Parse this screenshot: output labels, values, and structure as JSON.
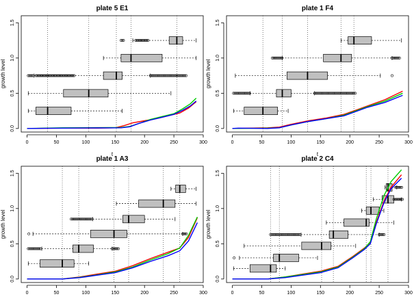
{
  "chart_data": [
    {
      "type": "line",
      "title": "plate 5 E1",
      "xlabel": "t",
      "ylabel": "growth level",
      "xlim": [
        -10,
        300
      ],
      "ylim": [
        -0.05,
        1.6
      ],
      "xticks": [
        0,
        50,
        100,
        150,
        200,
        250,
        300
      ],
      "yticks": [
        0.0,
        0.5,
        1.0,
        1.5
      ],
      "ytick_labels": [
        "0.0",
        "0.5",
        "1.0",
        "1.5"
      ],
      "vlines": [
        35,
        105,
        152,
        177,
        255
      ],
      "series": [
        {
          "color": "#ff0000",
          "points": [
            [
              0,
              0.0
            ],
            [
              60,
              0.005
            ],
            [
              120,
              0.005
            ],
            [
              150,
              0.01
            ],
            [
              165,
              0.04
            ],
            [
              180,
              0.08
            ],
            [
              200,
              0.11
            ],
            [
              220,
              0.14
            ],
            [
              240,
              0.18
            ],
            [
              260,
              0.22
            ],
            [
              275,
              0.29
            ],
            [
              288,
              0.38
            ]
          ]
        },
        {
          "color": "#00cc00",
          "points": [
            [
              0,
              0.0
            ],
            [
              60,
              0.01
            ],
            [
              120,
              0.012
            ],
            [
              160,
              0.015
            ],
            [
              175,
              0.03
            ],
            [
              190,
              0.07
            ],
            [
              210,
              0.13
            ],
            [
              230,
              0.17
            ],
            [
              250,
              0.21
            ],
            [
              265,
              0.28
            ],
            [
              278,
              0.35
            ],
            [
              288,
              0.43
            ]
          ]
        },
        {
          "color": "#0000ff",
          "points": [
            [
              0,
              0.0
            ],
            [
              60,
              0.005
            ],
            [
              120,
              0.008
            ],
            [
              160,
              0.01
            ],
            [
              175,
              0.025
            ],
            [
              190,
              0.07
            ],
            [
              210,
              0.12
            ],
            [
              230,
              0.16
            ],
            [
              250,
              0.2
            ],
            [
              265,
              0.26
            ],
            [
              278,
              0.32
            ],
            [
              288,
              0.39
            ]
          ]
        }
      ],
      "boxplots": [
        {
          "y": 0.25,
          "whisker_low": 2,
          "q1": 15,
          "median": 35,
          "q3": 75,
          "whisker_high": 162,
          "outliers": []
        },
        {
          "y": 0.5,
          "whisker_low": 2,
          "q1": 62,
          "median": 105,
          "q3": 138,
          "whisker_high": 245,
          "outliers": []
        },
        {
          "y": 0.75,
          "whisker_low": 12,
          "q1": 130,
          "median": 152,
          "q3": 162,
          "whisker_high": 210,
          "outliers": [
            [
              2,
              12
            ],
            [
              15,
              82
            ],
            [
              210,
              272
            ]
          ]
        },
        {
          "y": 1.0,
          "whisker_low": 130,
          "q1": 160,
          "median": 177,
          "q3": 230,
          "whisker_high": 288,
          "outliers": []
        },
        {
          "y": 1.25,
          "whisker_low": 180,
          "q1": 242,
          "median": 255,
          "q3": 265,
          "whisker_high": 288,
          "outliers": [
            [
              160,
              165
            ],
            [
              185,
              208
            ]
          ]
        }
      ]
    },
    {
      "type": "line",
      "title": "plate 1 F4",
      "xlabel": "t",
      "ylabel": "growth level",
      "xlim": [
        -10,
        300
      ],
      "ylim": [
        -0.05,
        1.6
      ],
      "xticks": [
        0,
        50,
        100,
        150,
        200,
        250,
        300
      ],
      "yticks": [
        0.0,
        0.5,
        1.0,
        1.5
      ],
      "ytick_labels": [
        "0.0",
        "0.5",
        "1.0",
        "1.5"
      ],
      "vlines": [
        52,
        85,
        128,
        185,
        207
      ],
      "series": [
        {
          "color": "#ff0000",
          "points": [
            [
              0,
              0.0
            ],
            [
              60,
              0.01
            ],
            [
              80,
              0.02
            ],
            [
              100,
              0.06
            ],
            [
              130,
              0.11
            ],
            [
              160,
              0.15
            ],
            [
              190,
              0.2
            ],
            [
              210,
              0.26
            ],
            [
              230,
              0.32
            ],
            [
              260,
              0.41
            ],
            [
              290,
              0.53
            ]
          ]
        },
        {
          "color": "#00cc00",
          "points": [
            [
              0,
              0.0
            ],
            [
              60,
              0.005
            ],
            [
              80,
              0.01
            ],
            [
              100,
              0.05
            ],
            [
              130,
              0.1
            ],
            [
              160,
              0.14
            ],
            [
              190,
              0.19
            ],
            [
              210,
              0.25
            ],
            [
              230,
              0.31
            ],
            [
              260,
              0.39
            ],
            [
              290,
              0.5
            ]
          ]
        },
        {
          "color": "#0000ff",
          "points": [
            [
              0,
              0.0
            ],
            [
              10,
              0.005
            ],
            [
              60,
              0.0
            ],
            [
              80,
              0.01
            ],
            [
              100,
              0.05
            ],
            [
              130,
              0.1
            ],
            [
              160,
              0.14
            ],
            [
              190,
              0.18
            ],
            [
              210,
              0.24
            ],
            [
              230,
              0.3
            ],
            [
              260,
              0.37
            ],
            [
              290,
              0.47
            ]
          ]
        }
      ],
      "boxplots": [
        {
          "y": 0.25,
          "whisker_low": 2,
          "q1": 20,
          "median": 52,
          "q3": 77,
          "whisker_high": 95,
          "outliers": []
        },
        {
          "y": 0.5,
          "whisker_low": 30,
          "q1": 75,
          "median": 85,
          "q3": 100,
          "whisker_high": 140,
          "outliers": [
            [
              2,
              30
            ],
            [
              140,
              210
            ]
          ]
        },
        {
          "y": 0.75,
          "whisker_low": 5,
          "q1": 93,
          "median": 128,
          "q3": 162,
          "whisker_high": 252,
          "outliers": [
            [
              272,
              272
            ]
          ]
        },
        {
          "y": 1.0,
          "whisker_low": 85,
          "q1": 155,
          "median": 185,
          "q3": 203,
          "whisker_high": 272,
          "outliers": [
            [
              68,
              85
            ],
            [
              272,
              285
            ]
          ]
        },
        {
          "y": 1.25,
          "whisker_low": 185,
          "q1": 197,
          "median": 207,
          "q3": 237,
          "whisker_high": 288,
          "outliers": []
        }
      ]
    },
    {
      "type": "line",
      "title": "plate 1 A3",
      "xlabel": "t",
      "ylabel": "growth level",
      "xlim": [
        -10,
        300
      ],
      "ylim": [
        -0.05,
        1.6
      ],
      "xticks": [
        0,
        50,
        100,
        150,
        200,
        250,
        300
      ],
      "yticks": [
        0.0,
        0.5,
        1.0,
        1.5
      ],
      "ytick_labels": [
        "0.0",
        "0.5",
        "1.0",
        "1.5"
      ],
      "vlines": [
        60,
        88,
        148,
        173,
        232,
        260
      ],
      "series": [
        {
          "color": "#ff0000",
          "points": [
            [
              0,
              0.0
            ],
            [
              60,
              0.0
            ],
            [
              90,
              0.03
            ],
            [
              120,
              0.07
            ],
            [
              150,
              0.11
            ],
            [
              180,
              0.19
            ],
            [
              210,
              0.29
            ],
            [
              240,
              0.38
            ],
            [
              260,
              0.44
            ],
            [
              275,
              0.59
            ],
            [
              290,
              0.87
            ]
          ]
        },
        {
          "color": "#00cc00",
          "points": [
            [
              0,
              0.0
            ],
            [
              60,
              0.0
            ],
            [
              90,
              0.025
            ],
            [
              120,
              0.06
            ],
            [
              150,
              0.1
            ],
            [
              180,
              0.17
            ],
            [
              210,
              0.27
            ],
            [
              240,
              0.36
            ],
            [
              260,
              0.44
            ],
            [
              275,
              0.62
            ],
            [
              290,
              0.88
            ]
          ]
        },
        {
          "color": "#0000ff",
          "points": [
            [
              0,
              0.0
            ],
            [
              60,
              0.0
            ],
            [
              90,
              0.02
            ],
            [
              120,
              0.055
            ],
            [
              150,
              0.09
            ],
            [
              180,
              0.16
            ],
            [
              210,
              0.25
            ],
            [
              240,
              0.33
            ],
            [
              260,
              0.4
            ],
            [
              275,
              0.54
            ],
            [
              290,
              0.8
            ]
          ]
        }
      ],
      "boxplots": [
        {
          "y": 0.22,
          "whisker_low": 2,
          "q1": 22,
          "median": 60,
          "q3": 80,
          "whisker_high": 105,
          "outliers": []
        },
        {
          "y": 0.43,
          "whisker_low": 25,
          "q1": 78,
          "median": 88,
          "q3": 113,
          "whisker_high": 145,
          "outliers": [
            [
              2,
              25
            ],
            [
              145,
              157
            ]
          ]
        },
        {
          "y": 0.64,
          "whisker_low": 10,
          "q1": 108,
          "median": 148,
          "q3": 170,
          "whisker_high": 265,
          "outliers": [
            [
              3,
              3
            ],
            [
              265,
              272
            ]
          ]
        },
        {
          "y": 0.85,
          "whisker_low": 112,
          "q1": 163,
          "median": 173,
          "q3": 200,
          "whisker_high": 252,
          "outliers": [
            [
              75,
              112
            ]
          ]
        },
        {
          "y": 1.07,
          "whisker_low": 152,
          "q1": 190,
          "median": 232,
          "q3": 252,
          "whisker_high": 288,
          "outliers": []
        },
        {
          "y": 1.28,
          "whisker_low": 245,
          "q1": 253,
          "median": 260,
          "q3": 270,
          "whisker_high": 288,
          "outliers": []
        }
      ]
    },
    {
      "type": "line",
      "title": "plate 2 C4",
      "xlabel": "t",
      "ylabel": "growth level",
      "xlim": [
        -10,
        300
      ],
      "ylim": [
        -0.05,
        1.6
      ],
      "xticks": [
        0,
        50,
        100,
        150,
        200,
        250,
        300
      ],
      "yticks": [
        0.0,
        0.5,
        1.0,
        1.5
      ],
      "ytick_labels": [
        "0.0",
        "0.5",
        "1.0",
        "1.5"
      ],
      "vlines": [
        65,
        80,
        152,
        172,
        228,
        236,
        265
      ],
      "series": [
        {
          "color": "#ff0000",
          "points": [
            [
              0,
              0.0
            ],
            [
              60,
              0.0
            ],
            [
              90,
              0.03
            ],
            [
              120,
              0.07
            ],
            [
              150,
              0.11
            ],
            [
              180,
              0.18
            ],
            [
              205,
              0.32
            ],
            [
              225,
              0.44
            ],
            [
              235,
              0.52
            ],
            [
              245,
              0.8
            ],
            [
              258,
              1.1
            ],
            [
              270,
              1.3
            ],
            [
              288,
              1.48
            ]
          ]
        },
        {
          "color": "#00cc00",
          "points": [
            [
              0,
              0.0
            ],
            [
              60,
              0.0
            ],
            [
              90,
              0.03
            ],
            [
              120,
              0.065
            ],
            [
              150,
              0.1
            ],
            [
              180,
              0.17
            ],
            [
              205,
              0.31
            ],
            [
              225,
              0.43
            ],
            [
              235,
              0.53
            ],
            [
              245,
              0.85
            ],
            [
              258,
              1.18
            ],
            [
              270,
              1.38
            ],
            [
              288,
              1.55
            ]
          ]
        },
        {
          "color": "#0000ff",
          "points": [
            [
              0,
              0.0
            ],
            [
              60,
              0.0
            ],
            [
              90,
              0.02
            ],
            [
              120,
              0.055
            ],
            [
              150,
              0.09
            ],
            [
              180,
              0.16
            ],
            [
              205,
              0.3
            ],
            [
              225,
              0.42
            ],
            [
              235,
              0.5
            ],
            [
              245,
              0.78
            ],
            [
              258,
              1.08
            ],
            [
              270,
              1.28
            ],
            [
              288,
              1.43
            ]
          ]
        }
      ],
      "boxplots": [
        {
          "y": 0.15,
          "whisker_low": 2,
          "q1": 30,
          "median": 65,
          "q3": 75,
          "whisker_high": 90,
          "outliers": []
        },
        {
          "y": 0.3,
          "whisker_low": 12,
          "q1": 70,
          "median": 80,
          "q3": 113,
          "whisker_high": 145,
          "outliers": [
            [
              3,
              3
            ]
          ]
        },
        {
          "y": 0.47,
          "whisker_low": 20,
          "q1": 118,
          "median": 152,
          "q3": 168,
          "whisker_high": 210,
          "outliers": []
        },
        {
          "y": 0.63,
          "whisker_low": 117,
          "q1": 165,
          "median": 172,
          "q3": 197,
          "whisker_high": 250,
          "outliers": [
            [
              65,
              117
            ],
            [
              250,
              260
            ]
          ]
        },
        {
          "y": 0.8,
          "whisker_low": 160,
          "q1": 190,
          "median": 228,
          "q3": 233,
          "whisker_high": 275,
          "outliers": []
        },
        {
          "y": 0.97,
          "whisker_low": 220,
          "q1": 228,
          "median": 236,
          "q3": 250,
          "whisker_high": 258,
          "outliers": []
        },
        {
          "y": 1.13,
          "whisker_low": 240,
          "q1": 255,
          "median": 265,
          "q3": 275,
          "whisker_high": 288,
          "outliers": [
            [
              275,
              290
            ]
          ]
        },
        {
          "y": 1.3,
          "whisker_low": 260,
          "q1": 262,
          "median": 265,
          "q3": 272,
          "whisker_high": 280,
          "outliers": [
            [
              278,
              290
            ]
          ]
        }
      ]
    }
  ]
}
